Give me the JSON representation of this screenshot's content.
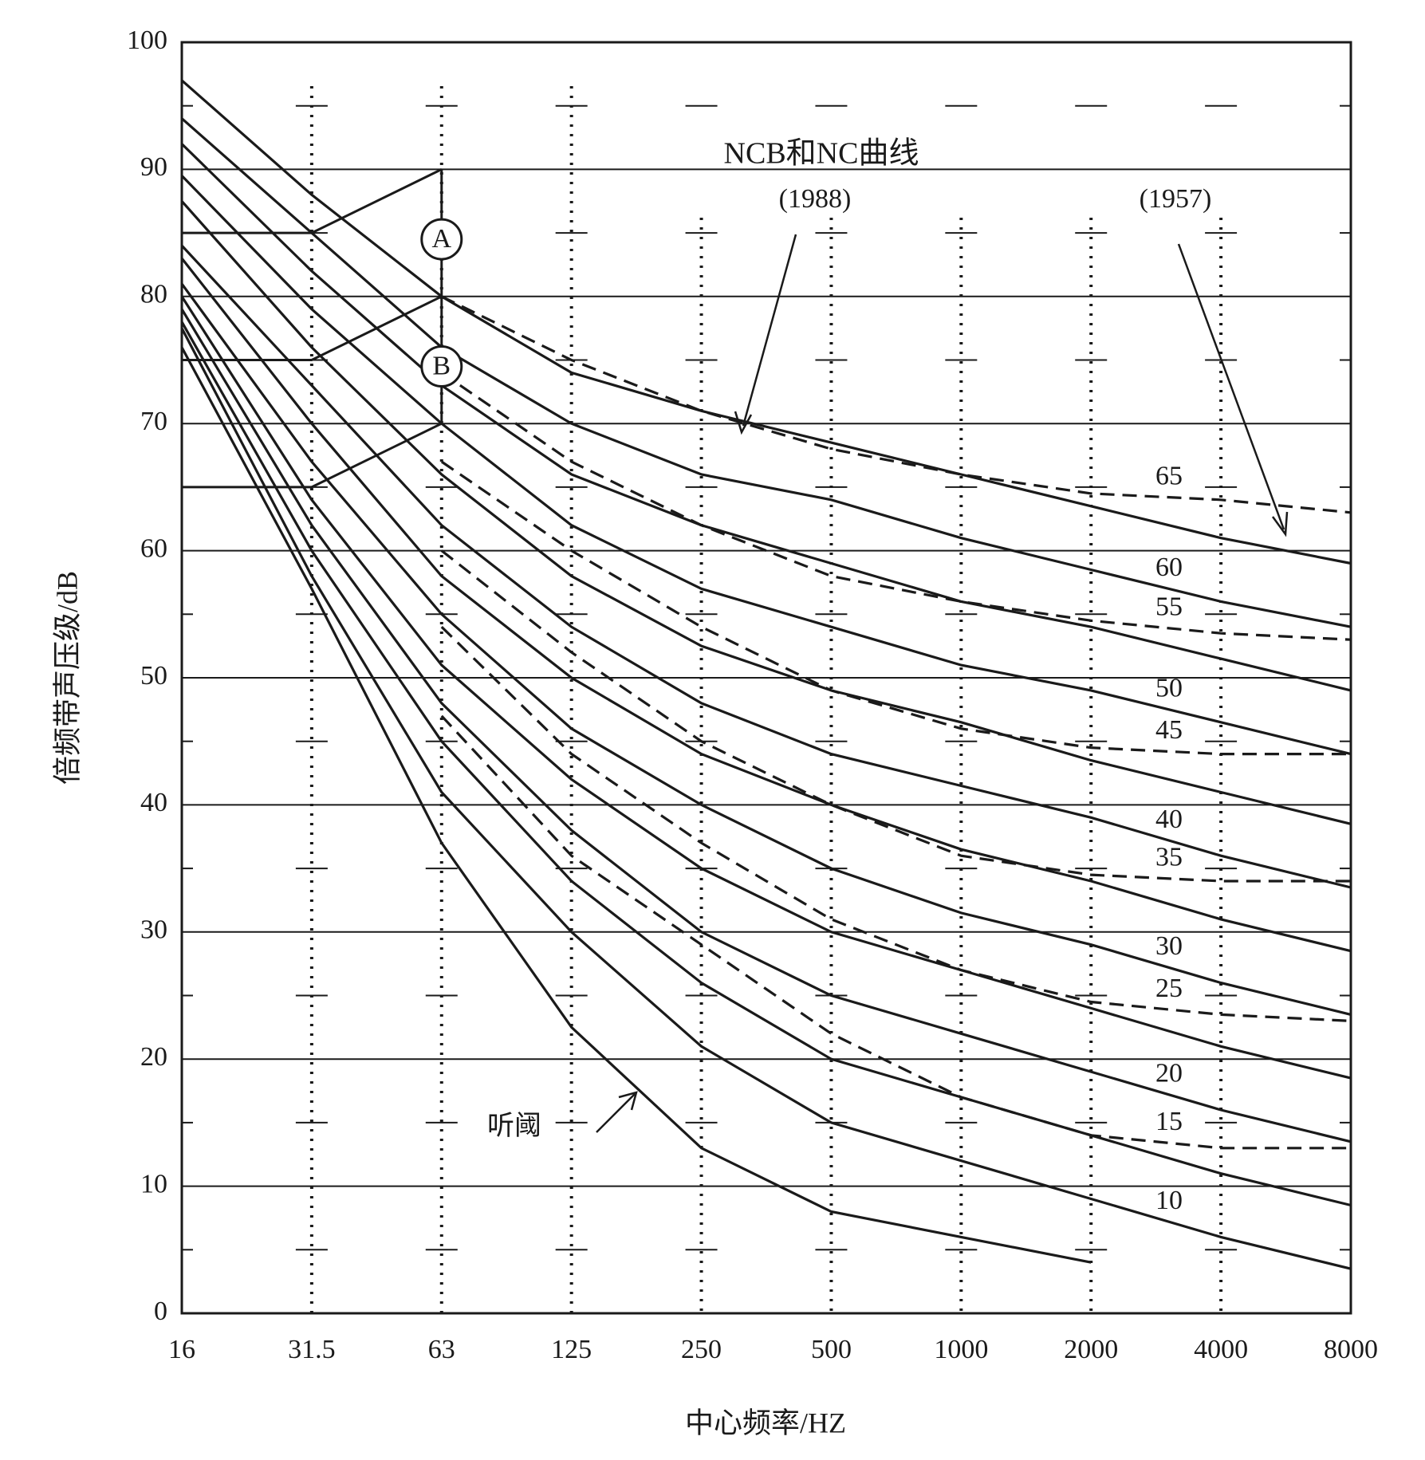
{
  "chart_data": {
    "type": "line",
    "title": "NCB和NC曲线",
    "x_label": "中心频率/HZ",
    "y_label": "倍频带声压级/dB",
    "categories": [
      16,
      31.5,
      63,
      125,
      250,
      500,
      1000,
      2000,
      4000,
      8000
    ],
    "ylim": [
      0,
      100
    ],
    "yticks": [
      0,
      10,
      20,
      30,
      40,
      50,
      60,
      70,
      80,
      90,
      100
    ],
    "minor_yticks": [
      5,
      15,
      25,
      35,
      45,
      55,
      65,
      75,
      85,
      95
    ],
    "grid": true,
    "color": "#1a1a1a",
    "ncb": {
      "label": "(1988)",
      "series": [
        {
          "values": [
            97,
            88,
            80,
            74,
            71,
            68.5,
            66,
            63.5,
            61,
            59
          ]
        },
        {
          "name": "60",
          "values": [
            94,
            85,
            76,
            70,
            66,
            64,
            61,
            58.5,
            56,
            54
          ]
        },
        {
          "values": [
            92,
            82,
            73,
            66,
            62,
            59,
            56,
            54,
            51.5,
            49
          ]
        },
        {
          "name": "50",
          "values": [
            89.5,
            79,
            70,
            62,
            57,
            54,
            51,
            49,
            46.5,
            44
          ]
        },
        {
          "values": [
            87.5,
            76,
            66,
            58,
            52.5,
            49,
            46.5,
            43.5,
            41,
            38.5
          ]
        },
        {
          "name": "40",
          "values": [
            84,
            73,
            62,
            54,
            48,
            44,
            41.5,
            39,
            36,
            33.5
          ]
        },
        {
          "values": [
            83,
            70,
            58,
            50,
            44,
            40,
            36.5,
            34,
            31,
            28.5
          ]
        },
        {
          "name": "30",
          "values": [
            81,
            67,
            55,
            46,
            40,
            35,
            31.5,
            29,
            26,
            23.5
          ]
        },
        {
          "values": [
            80,
            64,
            51,
            42,
            35,
            30,
            27,
            24,
            21,
            18.5
          ]
        },
        {
          "name": "20",
          "values": [
            79,
            62,
            48,
            38,
            30,
            25,
            22,
            19,
            16,
            13.5
          ]
        },
        {
          "values": [
            78,
            60,
            45,
            34,
            26,
            20,
            17,
            14,
            11,
            8.5
          ]
        },
        {
          "name": "10",
          "values": [
            77.5,
            58,
            41,
            30,
            21,
            15,
            12,
            9,
            6,
            3.5
          ]
        }
      ]
    },
    "nc": {
      "label": "(1957)",
      "series": [
        {
          "name": "65",
          "values": [
            null,
            null,
            80,
            75,
            71,
            68,
            66,
            64.5,
            64,
            63
          ]
        },
        {
          "name": "55",
          "values": [
            null,
            null,
            74,
            67,
            62,
            58,
            56,
            54.5,
            53.5,
            53
          ]
        },
        {
          "name": "45",
          "values": [
            null,
            null,
            67,
            60,
            54,
            49,
            46,
            44.5,
            44,
            44
          ]
        },
        {
          "name": "35",
          "values": [
            null,
            null,
            60,
            52,
            45,
            40,
            36,
            34.5,
            34,
            34
          ]
        },
        {
          "name": "25",
          "values": [
            null,
            null,
            54,
            44,
            37,
            31,
            27,
            24.5,
            23.5,
            23
          ]
        },
        {
          "name": "15",
          "values": [
            null,
            null,
            47,
            36,
            29,
            22,
            17,
            14,
            13,
            13
          ]
        }
      ]
    },
    "threshold": {
      "name": "听阈",
      "values": [
        76,
        57,
        37,
        22.5,
        13,
        8,
        6,
        4,
        null,
        null
      ]
    },
    "regions": {
      "boundaries": [
        {
          "x": [
            16,
            31.5,
            63
          ],
          "values": [
            85,
            85,
            90
          ]
        },
        {
          "x": [
            16,
            31.5,
            63
          ],
          "values": [
            75,
            75,
            80
          ]
        },
        {
          "x": [
            16,
            31.5,
            63
          ],
          "values": [
            65,
            65,
            70
          ]
        },
        {
          "x": [
            63,
            63
          ],
          "values": [
            70,
            90
          ]
        }
      ],
      "labels": [
        {
          "text": "A",
          "x": 63,
          "y": 84.5
        },
        {
          "text": "B",
          "x": 63,
          "y": 74.5
        }
      ]
    }
  }
}
